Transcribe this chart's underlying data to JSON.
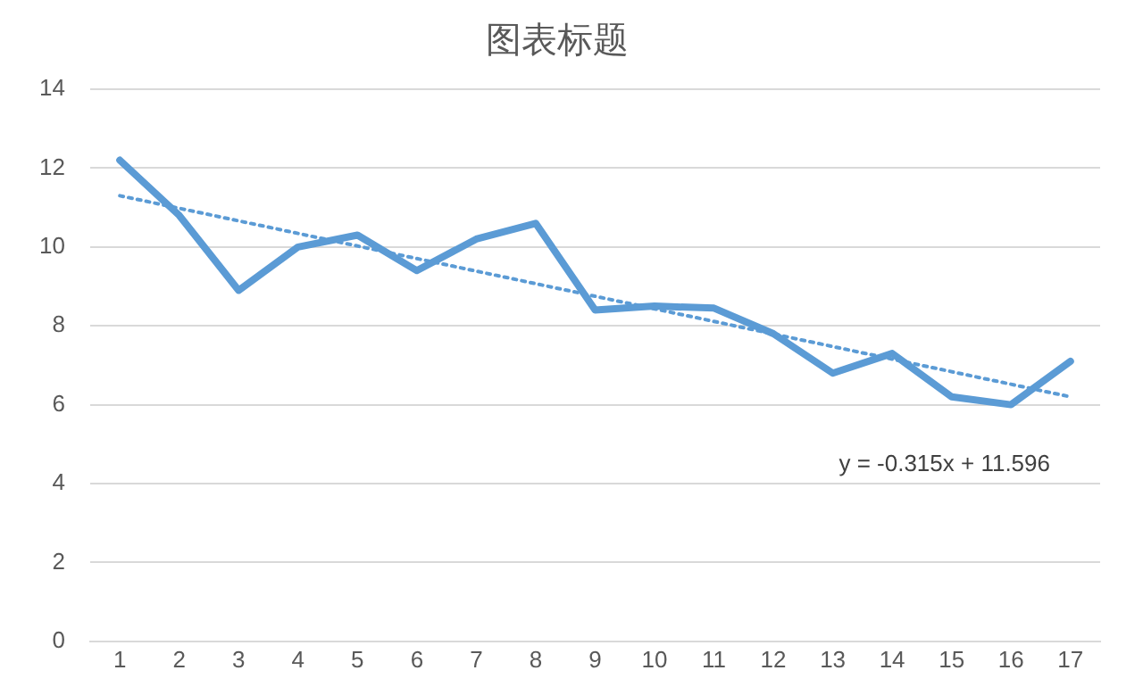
{
  "chart_data": {
    "type": "line",
    "title": "图表标题",
    "x": [
      1,
      2,
      3,
      4,
      5,
      6,
      7,
      8,
      9,
      10,
      11,
      12,
      13,
      14,
      15,
      16,
      17
    ],
    "xlim": [
      0.5,
      17.5
    ],
    "xticks": [
      1,
      2,
      3,
      4,
      5,
      6,
      7,
      8,
      9,
      10,
      11,
      12,
      13,
      14,
      15,
      16,
      17
    ],
    "series": [
      {
        "color": "#5b9bd5",
        "values": [
          12.2,
          10.8,
          8.9,
          10.0,
          10.3,
          9.4,
          10.2,
          10.6,
          8.4,
          8.5,
          8.45,
          7.8,
          6.8,
          7.3,
          6.2,
          6.0,
          7.1
        ]
      },
      {
        "type": "line",
        "color": "#5b9bd5",
        "line_style": "dotted",
        "x": [
          1,
          17
        ],
        "values": [
          11.3,
          6.2
        ]
      }
    ],
    "ylim": [
      0,
      14
    ],
    "yticks": [
      0,
      2,
      4,
      6,
      8,
      10,
      12,
      14
    ],
    "grid": "y",
    "legend": false,
    "marker": "none",
    "annotations": [
      "y = -0.315x + 11.596"
    ]
  }
}
